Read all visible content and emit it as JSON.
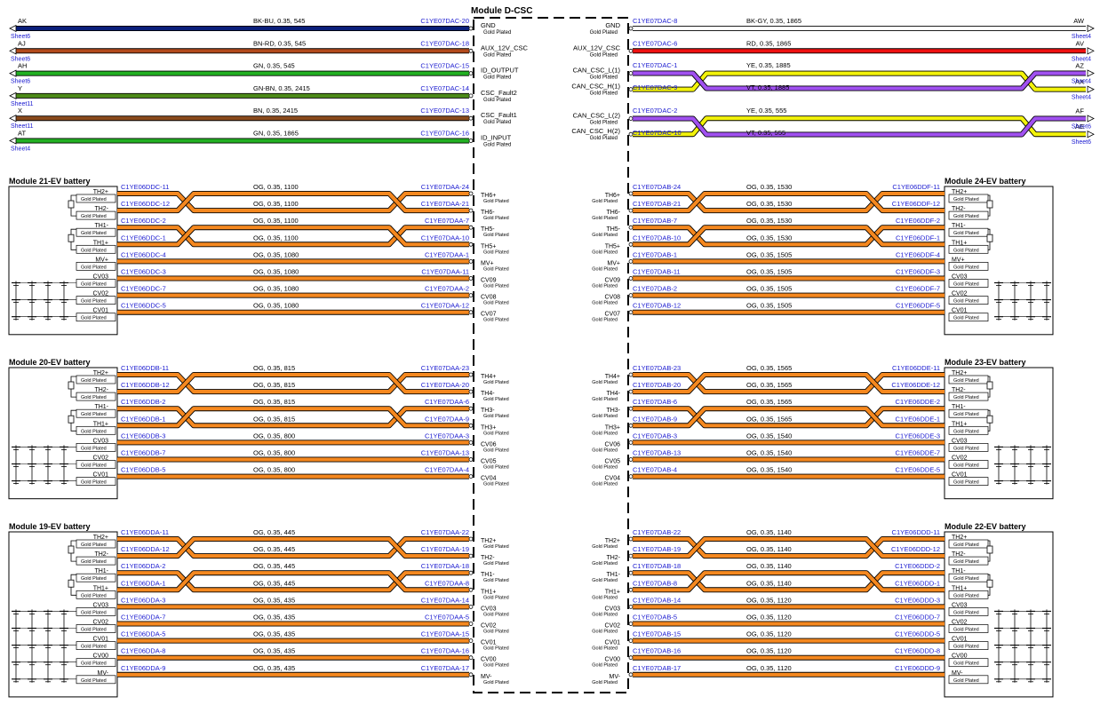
{
  "center": {
    "title": "Module D-CSC",
    "plate": "Gold Plated"
  },
  "top_left": [
    {
      "id": "AK",
      "sheet": "Sheet6",
      "spec": "BK-BU,  0.35,  545",
      "conn": "C1YE07DAC-20",
      "pin": "GND",
      "color": "#0a1f7a",
      "dual": false
    },
    {
      "id": "AJ",
      "sheet": "Sheet6",
      "spec": "BN-RD,  0.35,  545",
      "conn": "C1YE07DAC-18",
      "pin": "AUX_12V_CSC",
      "color": "#b24a1c",
      "dual": false
    },
    {
      "id": "AH",
      "sheet": "Sheet6",
      "spec": "GN,  0.35,  545",
      "conn": "C1YE07DAC-15",
      "pin": "ID_OUTPUT",
      "color": "#22b022",
      "dual": false
    },
    {
      "id": "Y",
      "sheet": "Sheet11",
      "spec": "GN-BN,  0.35,  2415",
      "conn": "C1YE07DAC-14",
      "pin": "CSC_Fault2",
      "color": "#4c8a18",
      "dual": false
    },
    {
      "id": "X",
      "sheet": "Sheet11",
      "spec": "BN,  0.35,  2415",
      "conn": "C1YE07DAC-13",
      "pin": "CSC_Fault1",
      "color": "#8a4a1c",
      "dual": false
    },
    {
      "id": "AT",
      "sheet": "Sheet4",
      "spec": "GN,  0.35,  1865",
      "conn": "C1YE07DAC-16",
      "pin": "ID_INPUT",
      "color": "#22b022",
      "dual": false
    }
  ],
  "top_right": [
    {
      "id": "AW",
      "sheet": "Sheet4",
      "spec": "BK-GY,  0.35,  1865",
      "conn": "C1YE07DAC-8",
      "pin": "GND",
      "color": "#ffffff",
      "dual": false
    },
    {
      "id": "AV",
      "sheet": "Sheet4",
      "spec": "RD,  0.35,  1865",
      "conn": "C1YE07DAC-6",
      "pin": "AUX_12V_CSC",
      "color": "#ee1111",
      "dual": false
    },
    {
      "id": "AX",
      "sheet": "Sheet4",
      "spec": "YE,  0.35,  1885",
      "conn": "C1YE07DAC-1",
      "pin": "CAN_CSC_H(1)",
      "color": "#f2f20a",
      "dual": false
    },
    {
      "id": "AZ",
      "sheet": "Sheet4",
      "spec": "VT,  0.35,  1885",
      "conn": "C1YE07DAC-9",
      "pin": "CAN_CSC_L(1)",
      "color": "#a050f0",
      "dual": false
    },
    {
      "id": "AE",
      "sheet": "Sheet6",
      "spec": "YE,  0.35,  555",
      "conn": "C1YE07DAC-2",
      "pin": "CAN_CSC_H(2)",
      "color": "#f2f20a",
      "dual": false
    },
    {
      "id": "AF",
      "sheet": "Sheet6",
      "spec": "VT,  0.35,  555",
      "conn": "C1YE07DAC-10",
      "pin": "CAN_CSC_L(2)",
      "color": "#a050f0",
      "dual": false
    }
  ],
  "modules": [
    {
      "title": "Module 21-EV battery",
      "side": "left",
      "pins": [
        "TH2+",
        "TH2-",
        "TH1-",
        "TH1+",
        "MV+",
        "CV03",
        "CV02",
        "CV01"
      ],
      "wires": [
        {
          "from": "C1YE06DDC-11",
          "spec": "OG,  0.35,  1100",
          "to": "C1YE07DAA-24",
          "pin": "TH6+"
        },
        {
          "from": "C1YE06DDC-12",
          "spec": "OG,  0.35,  1100",
          "to": "C1YE07DAA-21",
          "pin": "TH6-"
        },
        {
          "from": "C1YE06DDC-2",
          "spec": "OG,  0.35,  1100",
          "to": "C1YE07DAA-7",
          "pin": "TH5-"
        },
        {
          "from": "C1YE06DDC-1",
          "spec": "OG,  0.35,  1100",
          "to": "C1YE07DAA-10",
          "pin": "TH5+"
        },
        {
          "from": "C1YE06DDC-4",
          "spec": "OG,  0.35,  1080",
          "to": "C1YE07DAA-1",
          "pin": "MV+"
        },
        {
          "from": "C1YE06DDC-3",
          "spec": "OG,  0.35,  1080",
          "to": "C1YE07DAA-11",
          "pin": "CV09"
        },
        {
          "from": "C1YE06DDC-7",
          "spec": "OG,  0.35,  1080",
          "to": "C1YE07DAA-2",
          "pin": "CV08"
        },
        {
          "from": "C1YE06DDC-5",
          "spec": "OG,  0.35,  1080",
          "to": "C1YE07DAA-12",
          "pin": "CV07"
        }
      ]
    },
    {
      "title": "Module 24-EV battery",
      "side": "right",
      "pins": [
        "TH2+",
        "TH2-",
        "TH1-",
        "TH1+",
        "MV+",
        "CV03",
        "CV02",
        "CV01"
      ],
      "wires": [
        {
          "from": "C1YE07DAB-24",
          "spec": "OG,  0.35,  1530",
          "to": "C1YE06DDF-11",
          "pin": "TH6+"
        },
        {
          "from": "C1YE07DAB-21",
          "spec": "OG,  0.35,  1530",
          "to": "C1YE06DDF-12",
          "pin": "TH6-"
        },
        {
          "from": "C1YE07DAB-7",
          "spec": "OG,  0.35,  1530",
          "to": "C1YE06DDF-2",
          "pin": "TH5-"
        },
        {
          "from": "C1YE07DAB-10",
          "spec": "OG,  0.35,  1530",
          "to": "C1YE06DDF-1",
          "pin": "TH5+"
        },
        {
          "from": "C1YE07DAB-1",
          "spec": "OG,  0.35,  1505",
          "to": "C1YE06DDF-4",
          "pin": "MV+"
        },
        {
          "from": "C1YE07DAB-11",
          "spec": "OG,  0.35,  1505",
          "to": "C1YE06DDF-3",
          "pin": "CV09"
        },
        {
          "from": "C1YE07DAB-2",
          "spec": "OG,  0.35,  1505",
          "to": "C1YE06DDF-7",
          "pin": "CV08"
        },
        {
          "from": "C1YE07DAB-12",
          "spec": "OG,  0.35,  1505",
          "to": "C1YE06DDF-5",
          "pin": "CV07"
        }
      ]
    },
    {
      "title": "Module 20-EV battery",
      "side": "left",
      "pins": [
        "TH2+",
        "TH2-",
        "TH1-",
        "TH1+",
        "CV03",
        "CV02",
        "CV01"
      ],
      "wires": [
        {
          "from": "C1YE06DDB-11",
          "spec": "OG,  0.35,  815",
          "to": "C1YE07DAA-23",
          "pin": "TH4+"
        },
        {
          "from": "C1YE06DDB-12",
          "spec": "OG,  0.35,  815",
          "to": "C1YE07DAA-20",
          "pin": "TH4-"
        },
        {
          "from": "C1YE06DDB-2",
          "spec": "OG,  0.35,  815",
          "to": "C1YE07DAA-6",
          "pin": "TH3-"
        },
        {
          "from": "C1YE06DDB-1",
          "spec": "OG,  0.35,  815",
          "to": "C1YE07DAA-9",
          "pin": "TH3+"
        },
        {
          "from": "C1YE06DDB-3",
          "spec": "OG,  0.35,  800",
          "to": "C1YE07DAA-3",
          "pin": "CV06"
        },
        {
          "from": "C1YE06DDB-7",
          "spec": "OG,  0.35,  800",
          "to": "C1YE07DAA-13",
          "pin": "CV05"
        },
        {
          "from": "C1YE06DDB-5",
          "spec": "OG,  0.35,  800",
          "to": "C1YE07DAA-4",
          "pin": "CV04"
        }
      ]
    },
    {
      "title": "Module 23-EV battery",
      "side": "right",
      "pins": [
        "TH2+",
        "TH2-",
        "TH1-",
        "TH1+",
        "CV03",
        "CV02",
        "CV01"
      ],
      "wires": [
        {
          "from": "C1YE07DAB-23",
          "spec": "OG,  0.35,  1565",
          "to": "C1YE06DDE-11",
          "pin": "TH4+"
        },
        {
          "from": "C1YE07DAB-20",
          "spec": "OG,  0.35,  1565",
          "to": "C1YE06DDE-12",
          "pin": "TH4-"
        },
        {
          "from": "C1YE07DAB-6",
          "spec": "OG,  0.35,  1565",
          "to": "C1YE06DDE-2",
          "pin": "TH3-"
        },
        {
          "from": "C1YE07DAB-9",
          "spec": "OG,  0.35,  1565",
          "to": "C1YE06DDE-1",
          "pin": "TH3+"
        },
        {
          "from": "C1YE07DAB-3",
          "spec": "OG,  0.35,  1540",
          "to": "C1YE06DDE-3",
          "pin": "CV06"
        },
        {
          "from": "C1YE07DAB-13",
          "spec": "OG,  0.35,  1540",
          "to": "C1YE06DDE-7",
          "pin": "CV05"
        },
        {
          "from": "C1YE07DAB-4",
          "spec": "OG,  0.35,  1540",
          "to": "C1YE06DDE-5",
          "pin": "CV04"
        }
      ]
    },
    {
      "title": "Module 19-EV battery",
      "side": "left",
      "pins": [
        "TH2+",
        "TH2-",
        "TH1-",
        "TH1+",
        "CV03",
        "CV02",
        "CV01",
        "CV00",
        "MV-"
      ],
      "wires": [
        {
          "from": "C1YE06DDA-11",
          "spec": "OG,  0.35,  445",
          "to": "C1YE07DAA-22",
          "pin": "TH2+"
        },
        {
          "from": "C1YE06DDA-12",
          "spec": "OG,  0.35,  445",
          "to": "C1YE07DAA-19",
          "pin": "TH2-"
        },
        {
          "from": "C1YE06DDA-2",
          "spec": "OG,  0.35,  445",
          "to": "C1YE07DAA-18",
          "pin": "TH1-"
        },
        {
          "from": "C1YE06DDA-1",
          "spec": "OG,  0.35,  445",
          "to": "C1YE07DAA-8",
          "pin": "TH1+"
        },
        {
          "from": "C1YE06DDA-3",
          "spec": "OG,  0.35,  435",
          "to": "C1YE07DAA-14",
          "pin": "CV03"
        },
        {
          "from": "C1YE06DDA-7",
          "spec": "OG,  0.35,  435",
          "to": "C1YE07DAA-5",
          "pin": "CV02"
        },
        {
          "from": "C1YE06DDA-5",
          "spec": "OG,  0.35,  435",
          "to": "C1YE07DAA-15",
          "pin": "CV01"
        },
        {
          "from": "C1YE06DDA-8",
          "spec": "OG,  0.35,  435",
          "to": "C1YE07DAA-16",
          "pin": "CV00"
        },
        {
          "from": "C1YE06DDA-9",
          "spec": "OG,  0.35,  435",
          "to": "C1YE07DAA-17",
          "pin": "MV-"
        }
      ]
    },
    {
      "title": "Module 22-EV battery",
      "side": "right",
      "pins": [
        "TH2+",
        "TH2-",
        "TH1-",
        "TH1+",
        "CV03",
        "CV02",
        "CV01",
        "CV00",
        "MV-"
      ],
      "wires": [
        {
          "from": "C1YE07DAB-22",
          "spec": "OG,  0.35,  1140",
          "to": "C1YE06DDD-11",
          "pin": "TH2+"
        },
        {
          "from": "C1YE07DAB-19",
          "spec": "OG,  0.35,  1140",
          "to": "C1YE06DDD-12",
          "pin": "TH2-"
        },
        {
          "from": "C1YE07DAB-18",
          "spec": "OG,  0.35,  1140",
          "to": "C1YE06DDD-2",
          "pin": "TH1-"
        },
        {
          "from": "C1YE07DAB-8",
          "spec": "OG,  0.35,  1140",
          "to": "C1YE06DDD-1",
          "pin": "TH1+"
        },
        {
          "from": "C1YE07DAB-14",
          "spec": "OG,  0.35,  1120",
          "to": "C1YE06DDD-3",
          "pin": "CV03"
        },
        {
          "from": "C1YE07DAB-5",
          "spec": "OG,  0.35,  1120",
          "to": "C1YE06DDD-7",
          "pin": "CV02"
        },
        {
          "from": "C1YE07DAB-15",
          "spec": "OG,  0.35,  1120",
          "to": "C1YE06DDD-5",
          "pin": "CV01"
        },
        {
          "from": "C1YE07DAB-16",
          "spec": "OG,  0.35,  1120",
          "to": "C1YE06DDD-8",
          "pin": "CV00"
        },
        {
          "from": "C1YE07DAB-17",
          "spec": "OG,  0.35,  1120",
          "to": "C1YE06DDD-9",
          "pin": "MV-"
        }
      ]
    }
  ],
  "colors": {
    "wire_orange": "#f5881f",
    "conn_blue": "#1a1ad0",
    "sheet_blue": "#1a1ad0",
    "text": "#000000"
  }
}
